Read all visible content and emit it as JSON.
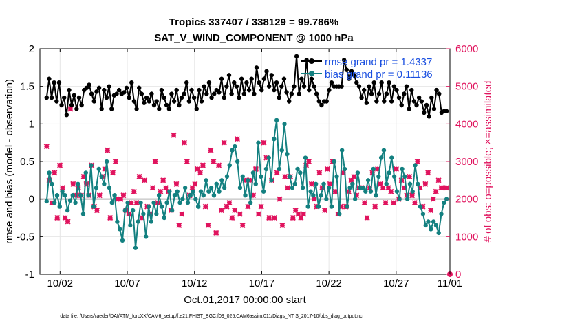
{
  "chart_data": {
    "type": "line",
    "title": "Tropics 337407 / 338129 = 99.786%",
    "subtitle": "SAT_V_WIND_COMPONENT @ 1000 hPa",
    "xlabel": "Oct.01,2017 00:00:00 start",
    "ylabel": "rmse and bias (model - observation)",
    "ylabel_right": "# of obs: o=possible; ×=assimilated",
    "xlim": [
      0.5,
      31
    ],
    "ylim": [
      -1,
      2
    ],
    "ylim_right": [
      0,
      6000
    ],
    "x_ticks": [
      2,
      7,
      12,
      17,
      22,
      27,
      31
    ],
    "x_tick_labels": [
      "10/02",
      "10/07",
      "10/12",
      "10/17",
      "10/22",
      "10/27",
      "11/01"
    ],
    "y_ticks": [
      -1,
      -0.5,
      0,
      0.5,
      1,
      1.5,
      2
    ],
    "y_tick_labels": [
      "-1",
      "-0.5",
      "0",
      "0.5",
      "1",
      "1.5",
      "2"
    ],
    "y_ticks_right": [
      0,
      1000,
      2000,
      3000,
      4000,
      5000,
      6000
    ],
    "y_tick_labels_right": [
      "0",
      "1000",
      "2000",
      "3000",
      "4000",
      "5000",
      "6000"
    ],
    "grid": true,
    "legend_position": "top-right",
    "series": [
      {
        "name": "rmse grand pr = 1.4337",
        "color": "#000000",
        "values": [
          1.35,
          1.6,
          1.35,
          1.55,
          1.3,
          1.55,
          1.25,
          1.35,
          1.12,
          1.45,
          1.25,
          1.38,
          1.2,
          1.35,
          1.25,
          1.45,
          1.48,
          1.52,
          1.4,
          1.3,
          1.43,
          1.48,
          1.2,
          1.45,
          1.35,
          1.5,
          1.2,
          1.38,
          1.4,
          1.45,
          1.4,
          1.42,
          1.48,
          1.35,
          1.55,
          1.3,
          1.2,
          1.48,
          1.4,
          1.28,
          1.35,
          1.3,
          1.4,
          1.25,
          1.3,
          1.2,
          1.45,
          1.35,
          1.25,
          1.2,
          1.4,
          1.3,
          1.45,
          1.25,
          1.35,
          1.4,
          1.55,
          1.3,
          1.45,
          1.35,
          1.2,
          1.45,
          1.3,
          1.5,
          1.4,
          1.55,
          1.35,
          1.4,
          1.45,
          1.42,
          1.6,
          1.35,
          1.5,
          1.65,
          1.4,
          1.55,
          1.5,
          1.35,
          1.6,
          1.4,
          1.55,
          1.45,
          1.6,
          1.4,
          1.75,
          1.55,
          1.45,
          1.6,
          1.7,
          1.5,
          1.65,
          1.45,
          1.55,
          1.35,
          1.5,
          1.6,
          1.42,
          1.3,
          1.4,
          1.5,
          1.9,
          1.4,
          1.6,
          1.5,
          1.85,
          1.45,
          1.6,
          1.5,
          1.4,
          1.3,
          1.25,
          1.3,
          1.3,
          1.45,
          1.55,
          1.5,
          1.5,
          1.5,
          1.5,
          1.85,
          1.72,
          1.6,
          1.7,
          1.65,
          1.55,
          1.5,
          1.35,
          1.45,
          1.28,
          1.5,
          1.4,
          1.55,
          1.3,
          1.4,
          1.55,
          1.3,
          1.4,
          1.55,
          1.3,
          1.5,
          1.45,
          1.35,
          1.25,
          1.4,
          1.5,
          1.2,
          1.45,
          1.3,
          1.25,
          1.35,
          1.3,
          1.15,
          1.25,
          1.1,
          1.35,
          1.2,
          1.45,
          1.4,
          1.15,
          1.17,
          1.17
        ]
      },
      {
        "name": "bias grand pr = 0.11136",
        "color": "#138080",
        "values": [
          -0.03,
          0.35,
          0.2,
          -0.05,
          0.05,
          -0.1,
          0.1,
          0.05,
          -0.15,
          -0.02,
          0.05,
          -0.05,
          0.2,
          0.05,
          -0.2,
          0.35,
          0.05,
          0.45,
          -0.1,
          0.15,
          0.4,
          0.3,
          0.2,
          0.5,
          0.15,
          -0.05,
          0.05,
          -0.3,
          -0.4,
          -0.55,
          -0.15,
          -0.05,
          -0.35,
          -0.15,
          -0.65,
          -0.3,
          -0.05,
          -0.2,
          -0.5,
          -0.1,
          -0.3,
          -0.05,
          -0.2,
          0.05,
          -0.1,
          -0.25,
          -0.05,
          0.1,
          -0.15,
          0.05,
          0.1,
          -0.05,
          0.0,
          0.15,
          -0.05,
          0.05,
          0.1,
          0.0,
          -0.1,
          0.1,
          0.05,
          0.25,
          0.1,
          0.15,
          0.05,
          0.2,
          0.1,
          0.25,
          0.15,
          0.3,
          0.45,
          0.65,
          0.7,
          0.5,
          0.15,
          0.3,
          0.05,
          0.25,
          -0.05,
          0.35,
          0.2,
          0.75,
          0.3,
          0.1,
          0.4,
          0.55,
          0.25,
          0.8,
          1.05,
          0.4,
          0.65,
          1.0,
          0.6,
          0.3,
          0.15,
          0.2,
          0.4,
          0.35,
          0.15,
          0.55,
          -0.1,
          0.1,
          0.05,
          0.2,
          -0.1,
          0.05,
          0.2,
          0.0,
          0.15,
          -0.1,
          0.5,
          0.3,
          -0.2,
          0.65,
          0.4,
          -0.1,
          0.15,
          0.2,
          0.0,
          0.35,
          0.15,
          0.15,
          0.1,
          0.25,
          0.1,
          0.4,
          0.05,
          0.3,
          0.55,
          0.65,
          0.2,
          0.35,
          0.55,
          0.3,
          0.1,
          0.0,
          0.4,
          0.3,
          0.0,
          0.2,
          0.1,
          0.45,
          0.2,
          -0.1,
          -0.2,
          -0.35,
          -0.3,
          -0.4,
          -0.3,
          -0.35,
          -0.45,
          -0.2,
          -0.05,
          0.0
        ]
      }
    ],
    "points_possible": [
      3400,
      2500,
      1900,
      2700,
      1500,
      2900,
      2300,
      1500,
      1400,
      4400,
      2400,
      2100,
      2300,
      2100,
      2600,
      2400,
      2100,
      2900,
      1800,
      1700,
      2100,
      2600,
      2800,
      3300,
      1500,
      2700,
      3000,
      2000,
      2000,
      2100,
      1700,
      1600,
      1900,
      2200,
      1900,
      2600,
      1500,
      2500,
      1800,
      1600,
      2300,
      3000,
      1900,
      2200,
      2500,
      2300,
      2200,
      1700,
      3700,
      2400,
      1300,
      1600,
      3500,
      3000,
      2100,
      2300,
      2400,
      2800,
      2700,
      2900,
      1800,
      1300,
      3300,
      3000,
      1100,
      2900,
      1700,
      3500,
      1800,
      1900,
      1500,
      1700,
      3600,
      1600,
      1300,
      2500,
      1800,
      2500,
      2100,
      2800,
      1600,
      1800,
      3500,
      3100,
      1500,
      2500,
      1500,
      2700,
      2000,
      1300,
      2600,
      2300,
      2600,
      1500,
      1700,
      1600,
      1500,
      1600,
      2900,
      3000,
      2400,
      2000,
      1800,
      2700,
      2300,
      1700,
      2800,
      2400,
      3000,
      2200,
      1600,
      1800,
      2700,
      1800,
      2200,
      2500,
      2600,
      2100,
      2300,
      2300,
      1900,
      1500,
      2300,
      2700,
      1800,
      2800,
      2400,
      2300,
      1900,
      2300,
      2200,
      1900,
      2800,
      2000,
      2500,
      2300,
      2100,
      2600,
      2100,
      1900,
      3000,
      2300,
      1800,
      2400,
      2700,
      1700,
      2000,
      2200,
      2500,
      2300,
      2300,
      2300
    ],
    "points_assimilated": [
      3400,
      2500,
      1900,
      2700,
      1500,
      2900,
      2300,
      1500,
      1400,
      4400,
      2400,
      2100,
      2300,
      2100,
      2600,
      2400,
      2100,
      2900,
      1800,
      1700,
      2100,
      2600,
      2800,
      3300,
      1500,
      2700,
      3000,
      2000,
      2000,
      2100,
      1700,
      1600,
      1900,
      2200,
      1900,
      2600,
      1500,
      2500,
      1800,
      1600,
      2300,
      3000,
      1900,
      2200,
      2500,
      2300,
      2200,
      1700,
      3700,
      2400,
      1300,
      1600,
      3500,
      3000,
      2100,
      2300,
      2400,
      2800,
      2700,
      2900,
      1800,
      1300,
      3300,
      3000,
      1100,
      2900,
      1700,
      3500,
      1800,
      1900,
      1500,
      1700,
      3600,
      1600,
      1300,
      2500,
      1800,
      2500,
      2100,
      2800,
      1600,
      1800,
      3500,
      3100,
      1500,
      2500,
      1500,
      2700,
      2000,
      1300,
      2600,
      2300,
      2600,
      1500,
      1700,
      1600,
      1500,
      1600,
      2900,
      3000,
      2400,
      2000,
      1800,
      2700,
      2300,
      1700,
      2800,
      2400,
      3000,
      2200,
      1600,
      1800,
      2700,
      1800,
      2200,
      2500,
      2600,
      2100,
      2300,
      2300,
      1900,
      1500,
      2300,
      2700,
      1800,
      2800,
      2400,
      2300,
      1900,
      2300,
      2200,
      1900,
      2800,
      2000,
      2500,
      2300,
      2100,
      2600,
      2100,
      1900,
      3000,
      2300,
      1800,
      2400,
      2700,
      1700,
      2000,
      2200,
      2500,
      2300,
      2300,
      2300
    ],
    "points_color": "#e0145e",
    "footer": "data file: /Users/raeder/DAI/ATM_forcXX/CAM6_setup/f.e21.FHIST_BGC.f09_025.CAM6assim.011/Diags_NTrS_2017-10/obs_diag_output.nc"
  }
}
